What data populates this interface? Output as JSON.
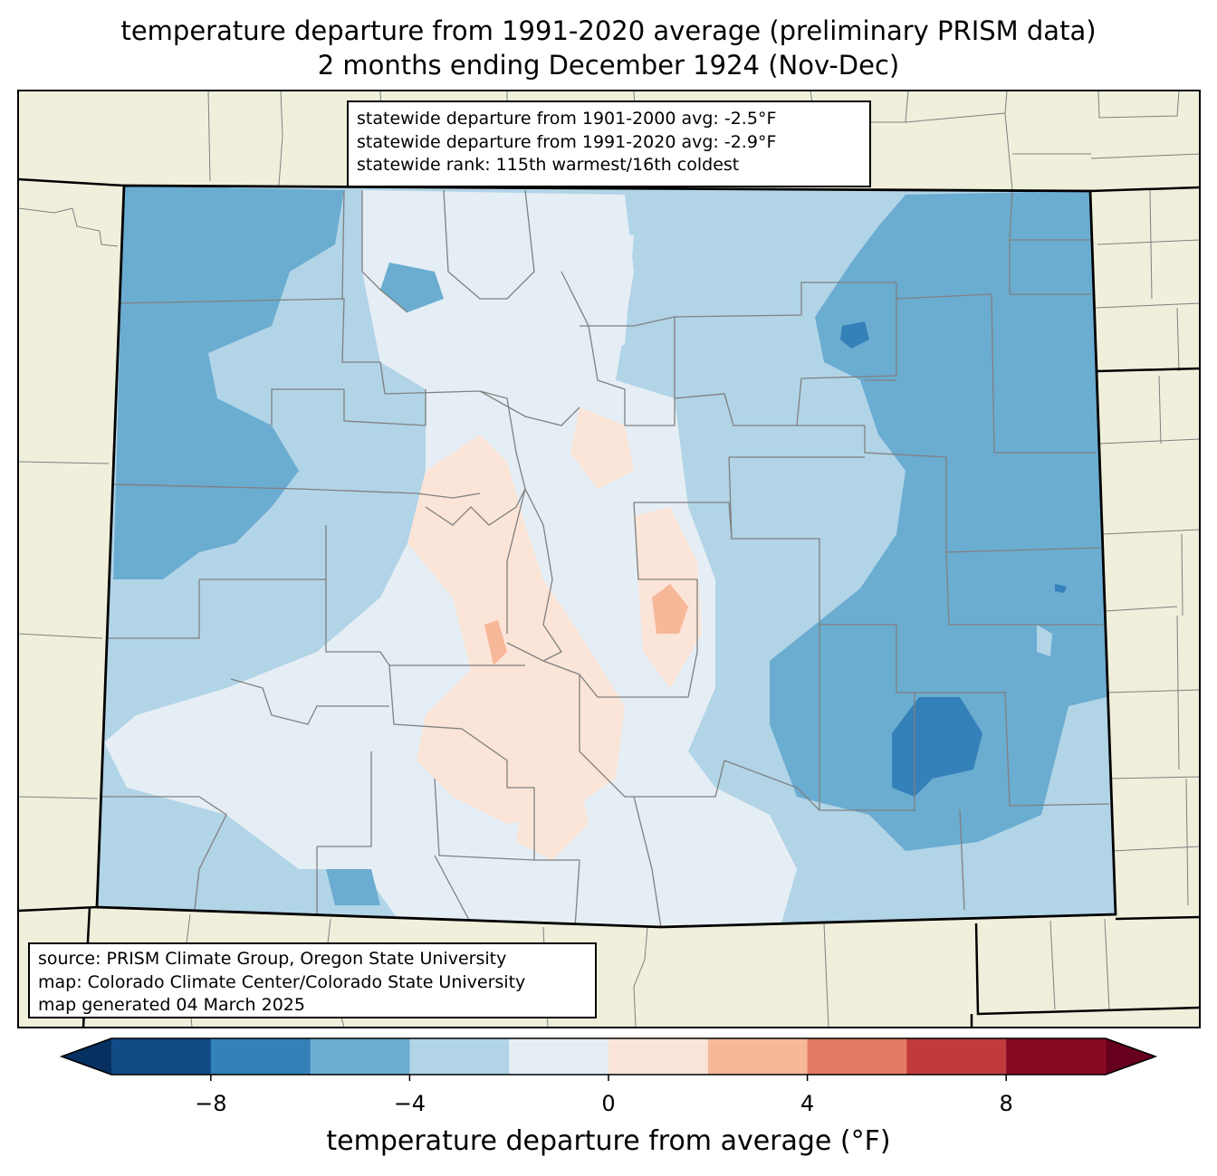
{
  "title": {
    "line1": "temperature departure from 1991-2020 average (preliminary PRISM data)",
    "line2": "2 months ending December 1924 (Nov-Dec)"
  },
  "stats": {
    "line1": "statewide departure from 1901-2000 avg: -2.5°F",
    "line2": "statewide departure from 1991-2020 avg: -2.9°F",
    "line3": "statewide rank: 115th warmest/16th coldest"
  },
  "credits": {
    "line1": "source: PRISM Climate Group, Oregon State University",
    "line2": "map: Colorado Climate Center/Colorado State University",
    "line3": "map generated 04 March 2025"
  },
  "colorbar": {
    "label": "temperature departure from average (°F)",
    "min": -10,
    "max": 10,
    "bins": [
      {
        "from": -10,
        "to": -8,
        "color": "#134b87"
      },
      {
        "from": -8,
        "to": -6,
        "color": "#3480b9"
      },
      {
        "from": -6,
        "to": -4,
        "color": "#6bacd1"
      },
      {
        "from": -4,
        "to": -2,
        "color": "#b1d4e7"
      },
      {
        "from": -2,
        "to": 0,
        "color": "#e5eef4"
      },
      {
        "from": 0,
        "to": 2,
        "color": "#fbe5d8"
      },
      {
        "from": 2,
        "to": 4,
        "color": "#f7b799"
      },
      {
        "from": 4,
        "to": 6,
        "color": "#e27b62"
      },
      {
        "from": 6,
        "to": 8,
        "color": "#c13b3c"
      },
      {
        "from": 8,
        "to": 10,
        "color": "#870a24"
      }
    ],
    "under_color": "#053061",
    "over_color": "#67001f",
    "ticks": [
      "−8",
      "−4",
      "0",
      "4",
      "8"
    ],
    "tick_values": [
      -8,
      -4,
      0,
      4,
      8
    ]
  },
  "map": {
    "land_color": "#efefdc",
    "county_line_color": "#808080",
    "state_line_color": "#000000"
  }
}
